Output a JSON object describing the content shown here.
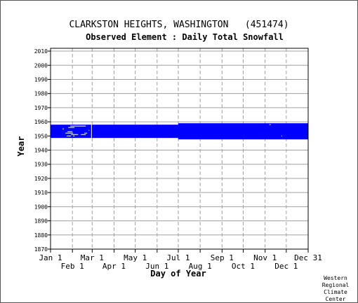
{
  "chart_data": {
    "type": "heatmap",
    "title": "CLARKSTON HEIGHTS, WASHINGTON   (451474)",
    "subtitle": "Observed Element : Daily Total Snowfall",
    "xlabel": "Day of Year",
    "ylabel": "Year",
    "xlim": [
      1,
      366
    ],
    "ylim": [
      1870,
      2012
    ],
    "x_ticks_upper": [
      {
        "label": "Jan 1",
        "day": 1
      },
      {
        "label": "Mar 1",
        "day": 60
      },
      {
        "label": "May 1",
        "day": 121
      },
      {
        "label": "Jul 1",
        "day": 182
      },
      {
        "label": "Sep 1",
        "day": 244
      },
      {
        "label": "Nov 1",
        "day": 305
      },
      {
        "label": "Dec 31",
        "day": 365
      }
    ],
    "x_ticks_lower": [
      {
        "label": "Feb 1",
        "day": 32
      },
      {
        "label": "Apr 1",
        "day": 91
      },
      {
        "label": "Jun 1",
        "day": 152
      },
      {
        "label": "Aug 1",
        "day": 213
      },
      {
        "label": "Oct 1",
        "day": 274
      },
      {
        "label": "Dec 1",
        "day": 335
      }
    ],
    "y_ticks": [
      "1870",
      "1880",
      "1890",
      "1900",
      "1910",
      "1920",
      "1930",
      "1940",
      "1950",
      "1960",
      "1970",
      "1980",
      "1990",
      "2000",
      "2010"
    ],
    "grid": true,
    "data_color": "#0000ff",
    "grid_color": "#a0a0a0",
    "observed_periods": [
      {
        "start_year": 1947.6,
        "start_day": 182,
        "end_year": 1959.0,
        "end_day": 366
      },
      {
        "start_year": 1948.6,
        "start_day": 1,
        "end_year": 1958.0,
        "end_day": 366
      }
    ],
    "snow_gaps": [
      {
        "year": 1957,
        "day_start": 29,
        "day_end": 51
      },
      {
        "year": 1956,
        "day_start": 26,
        "day_end": 35
      },
      {
        "year": 1955,
        "day_start": 18,
        "day_end": 20
      },
      {
        "year": 1953,
        "day_start": 25,
        "day_end": 32
      },
      {
        "year": 1952,
        "day_start": 22,
        "day_end": 33
      },
      {
        "year": 1952,
        "day_start": 49,
        "day_end": 53
      },
      {
        "year": 1951,
        "day_start": 30,
        "day_end": 40
      },
      {
        "year": 1951,
        "day_start": 44,
        "day_end": 51
      },
      {
        "year": 1950,
        "day_start": 24,
        "day_end": 30
      },
      {
        "year": 1950,
        "day_start": 33,
        "day_end": 35
      },
      {
        "year": 1958,
        "day_start": 311,
        "day_end": 313
      },
      {
        "year": 1950,
        "day_start": 328,
        "day_end": 329
      },
      {
        "year": 1954,
        "day_start": 55,
        "day_end": 56
      }
    ],
    "data_boundary_day": 59,
    "credit": [
      "Western",
      "Regional",
      "Climate",
      "Center"
    ]
  }
}
